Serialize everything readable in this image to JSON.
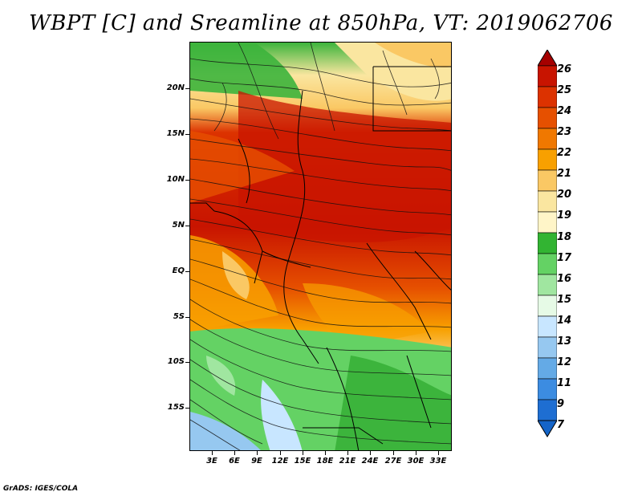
{
  "title": "WBPT [C] and Sreamline at 850hPa, VT: 2019062706",
  "footer": "GrADS: IGES/COLA",
  "map": {
    "lat_labels": [
      "20N",
      "15N",
      "10N",
      "5N",
      "EQ",
      "5S",
      "10S",
      "15S"
    ],
    "lon_labels": [
      "3E",
      "6E",
      "9E",
      "12E",
      "15E",
      "18E",
      "21E",
      "24E",
      "27E",
      "30E",
      "33E"
    ],
    "field": "wet-bulb potential temperature",
    "overlay": "streamlines"
  },
  "colorbar": {
    "levels": [
      "26",
      "25",
      "24",
      "23",
      "22",
      "21",
      "20",
      "19",
      "18",
      "17",
      "16",
      "15",
      "14",
      "13",
      "12",
      "11",
      "9",
      "7"
    ],
    "colors": [
      "#a50000",
      "#c81400",
      "#dc3200",
      "#e65000",
      "#f07800",
      "#f8a000",
      "#fac864",
      "#fae6a0",
      "#fff5c8",
      "#32b432",
      "#64d264",
      "#a0e6a0",
      "#e6fae6",
      "#c8e6ff",
      "#96c8f0",
      "#64aae6",
      "#3c8ce1",
      "#1e6ed2",
      "#1464c8"
    ]
  },
  "colors": {
    "hot": "#d23c00",
    "warm": "#f4a028",
    "mild": "#fad278",
    "cool_green": "#3cb43c",
    "light_green": "#96dc96",
    "blue": "#8cc3f0"
  }
}
